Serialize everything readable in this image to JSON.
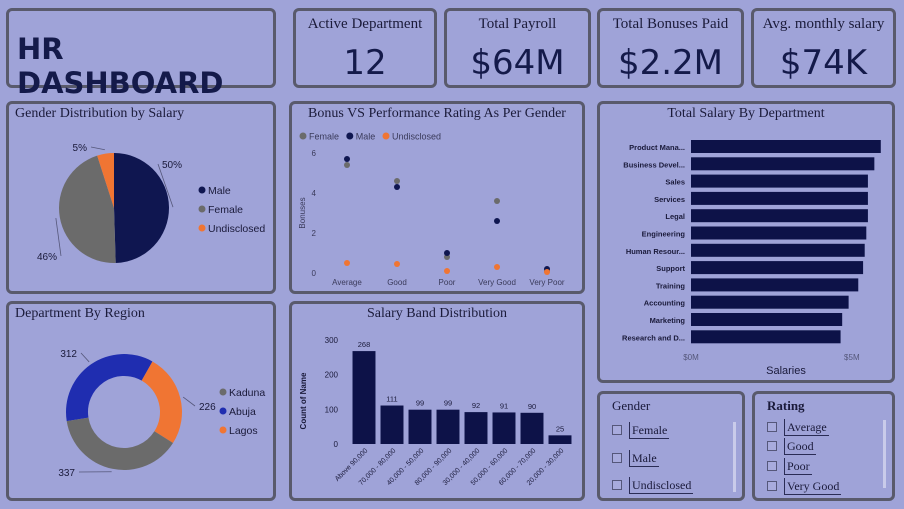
{
  "header": {
    "title": "HR DASHBOARD"
  },
  "kpis": [
    {
      "title": "Active Department",
      "value": "12"
    },
    {
      "title": "Total Payroll",
      "value": "$64M"
    },
    {
      "title": "Total Bonuses Paid",
      "value": "$2.2M"
    },
    {
      "title": "Avg. monthly salary",
      "value": "$74K"
    }
  ],
  "colors": {
    "male": "#0f1650",
    "female": "#6b6b6b",
    "undisclosed": "#f07533",
    "abuja": "#1f2db0",
    "navy": "#0d1248"
  },
  "chart_data": [
    {
      "type": "pie",
      "title": "Gender Distribution by Salary",
      "categories": [
        "Male",
        "Female",
        "Undisclosed"
      ],
      "values": [
        50,
        46,
        5
      ],
      "data_labels": [
        "50%",
        "46%",
        "5%"
      ],
      "legend": "right"
    },
    {
      "type": "scatter",
      "title": "Bonus VS Performance Rating As Per Gender",
      "categories": [
        "Average",
        "Good",
        "Poor",
        "Very Good",
        "Very Poor"
      ],
      "ylabel": "Bonuses",
      "ylim": [
        0,
        6
      ],
      "yticks": [
        "0",
        "2",
        "4",
        "6"
      ],
      "legend": "top-left",
      "series": [
        {
          "name": "Female",
          "values": [
            5.4,
            4.6,
            0.8,
            3.6,
            0.1
          ]
        },
        {
          "name": "Male",
          "values": [
            5.7,
            4.3,
            1.0,
            2.6,
            0.2
          ]
        },
        {
          "name": "Undisclosed",
          "values": [
            0.5,
            0.45,
            0.1,
            0.3,
            0.05
          ]
        }
      ]
    },
    {
      "type": "bar",
      "orientation": "horizontal",
      "title": "Total Salary By Department",
      "categories": [
        "Product Mana...",
        "Business Devel...",
        "Sales",
        "Services",
        "Legal",
        "Engineering",
        "Human Resour...",
        "Support",
        "Training",
        "Accounting",
        "Marketing",
        "Research and D..."
      ],
      "values": [
        5.9,
        5.7,
        5.5,
        5.5,
        5.5,
        5.45,
        5.4,
        5.35,
        5.2,
        4.9,
        4.7,
        4.65
      ],
      "xlabel": "Salaries",
      "xticks": [
        "$0M",
        "$5M"
      ],
      "xlim": [
        0,
        6
      ]
    },
    {
      "type": "pie",
      "subtype": "donut",
      "title": "Department By Region",
      "categories": [
        "Kaduna",
        "Abuja",
        "Lagos"
      ],
      "values": [
        337,
        312,
        226
      ],
      "data_labels": [
        "337",
        "312",
        "226"
      ],
      "legend": "right"
    },
    {
      "type": "bar",
      "title": "Salary Band Distribution",
      "categories": [
        "Above 90,000",
        "70,000 - 80,000",
        "40,000 - 50,000",
        "80,000 - 90,000",
        "30,000 - 40,000",
        "50,000 - 60,000",
        "60,000 - 70,000",
        "20,000 - 30,000"
      ],
      "values": [
        268,
        111,
        99,
        99,
        92,
        91,
        90,
        25
      ],
      "ylabel": "Count of Name",
      "ylim": [
        0,
        300
      ],
      "yticks": [
        "0",
        "100",
        "200",
        "300"
      ]
    }
  ],
  "slicers": {
    "gender": {
      "title": "Gender",
      "items": [
        "Female",
        "Male",
        "Undisclosed"
      ]
    },
    "rating": {
      "title": "Rating",
      "items": [
        "Average",
        "Good",
        "Poor",
        "Very Good"
      ]
    }
  }
}
